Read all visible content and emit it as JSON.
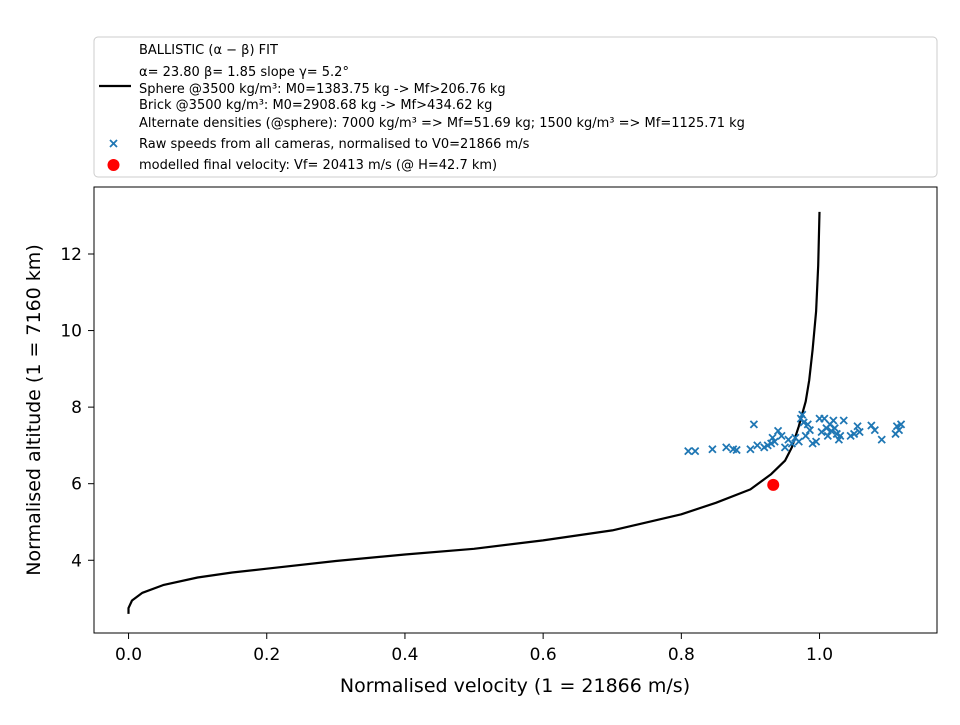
{
  "chart_data": {
    "type": "scatter",
    "xlabel": "Normalised velocity (1 = 21866 m/s)",
    "ylabel": "Normalised altitude (1 = 7160 km)",
    "xlim": [
      -0.05,
      1.17
    ],
    "ylim": [
      2.1,
      13.75
    ],
    "x_ticks": [
      0.0,
      0.2,
      0.4,
      0.6,
      0.8,
      1.0
    ],
    "x_tick_labels": [
      "0.0",
      "0.2",
      "0.4",
      "0.6",
      "0.8",
      "1.0"
    ],
    "y_ticks": [
      4,
      6,
      8,
      10,
      12
    ],
    "y_tick_labels": [
      "4",
      "6",
      "8",
      "10",
      "12"
    ],
    "grid": false,
    "legend": {
      "placement": "above plot",
      "line_entry": [
        "BALLISTIC (α − β) FIT",
        "α= 23.80     β= 1.85     slope γ= 5.2°",
        " Sphere @3500 kg/m³: M0=1383.75 kg -> Mf>206.76 kg",
        " Brick @3500 kg/m³: M0=2908.68 kg -> Mf>434.62 kg",
        "Alternate densities (@sphere): 7000 kg/m³ => Mf=51.69 kg; 1500 kg/m³ => Mf=1125.71 kg"
      ],
      "scatter_entry": "Raw speeds from all cameras, normalised to V0=21866 m/s",
      "point_entry": "modelled final velocity: Vf= 20413 m/s (@ H=42.7 km)"
    },
    "series": [
      {
        "kind": "line",
        "color": "#000000",
        "points": [
          [
            0.0,
            2.6
          ],
          [
            0.0,
            2.75
          ],
          [
            0.005,
            2.95
          ],
          [
            0.02,
            3.15
          ],
          [
            0.05,
            3.35
          ],
          [
            0.1,
            3.55
          ],
          [
            0.15,
            3.68
          ],
          [
            0.2,
            3.78
          ],
          [
            0.3,
            3.98
          ],
          [
            0.4,
            4.15
          ],
          [
            0.5,
            4.3
          ],
          [
            0.6,
            4.52
          ],
          [
            0.7,
            4.78
          ],
          [
            0.8,
            5.2
          ],
          [
            0.85,
            5.5
          ],
          [
            0.9,
            5.85
          ],
          [
            0.93,
            6.25
          ],
          [
            0.95,
            6.6
          ],
          [
            0.96,
            6.95
          ],
          [
            0.97,
            7.5
          ],
          [
            0.98,
            8.15
          ],
          [
            0.985,
            8.7
          ],
          [
            0.99,
            9.5
          ],
          [
            0.995,
            10.5
          ],
          [
            0.998,
            11.7
          ],
          [
            1.0,
            13.1
          ]
        ]
      },
      {
        "kind": "scatter",
        "color": "#1f77b4",
        "marker": "x",
        "points": [
          [
            0.81,
            6.85
          ],
          [
            0.82,
            6.85
          ],
          [
            0.845,
            6.9
          ],
          [
            0.865,
            6.95
          ],
          [
            0.875,
            6.9
          ],
          [
            0.88,
            6.88
          ],
          [
            0.9,
            6.9
          ],
          [
            0.905,
            7.55
          ],
          [
            0.91,
            7.0
          ],
          [
            0.92,
            6.95
          ],
          [
            0.925,
            7.0
          ],
          [
            0.93,
            7.05
          ],
          [
            0.932,
            7.2
          ],
          [
            0.935,
            7.1
          ],
          [
            0.94,
            7.38
          ],
          [
            0.945,
            7.25
          ],
          [
            0.95,
            6.95
          ],
          [
            0.955,
            7.15
          ],
          [
            0.96,
            7.05
          ],
          [
            0.965,
            7.2
          ],
          [
            0.97,
            7.1
          ],
          [
            0.973,
            7.7
          ],
          [
            0.975,
            7.8
          ],
          [
            0.977,
            7.6
          ],
          [
            0.98,
            7.25
          ],
          [
            0.983,
            7.55
          ],
          [
            0.986,
            7.4
          ],
          [
            0.99,
            7.05
          ],
          [
            0.995,
            7.1
          ],
          [
            1.0,
            7.7
          ],
          [
            1.003,
            7.35
          ],
          [
            1.007,
            7.7
          ],
          [
            1.01,
            7.45
          ],
          [
            1.012,
            7.25
          ],
          [
            1.015,
            7.55
          ],
          [
            1.017,
            7.38
          ],
          [
            1.02,
            7.65
          ],
          [
            1.022,
            7.45
          ],
          [
            1.025,
            7.3
          ],
          [
            1.028,
            7.15
          ],
          [
            1.03,
            7.25
          ],
          [
            1.035,
            7.65
          ],
          [
            1.045,
            7.25
          ],
          [
            1.05,
            7.3
          ],
          [
            1.055,
            7.5
          ],
          [
            1.058,
            7.35
          ],
          [
            1.075,
            7.52
          ],
          [
            1.08,
            7.4
          ],
          [
            1.09,
            7.15
          ],
          [
            1.11,
            7.3
          ],
          [
            1.112,
            7.5
          ],
          [
            1.115,
            7.4
          ],
          [
            1.118,
            7.55
          ]
        ]
      },
      {
        "kind": "point",
        "color": "#ff0000",
        "points": [
          [
            0.933,
            5.97
          ]
        ]
      }
    ]
  }
}
